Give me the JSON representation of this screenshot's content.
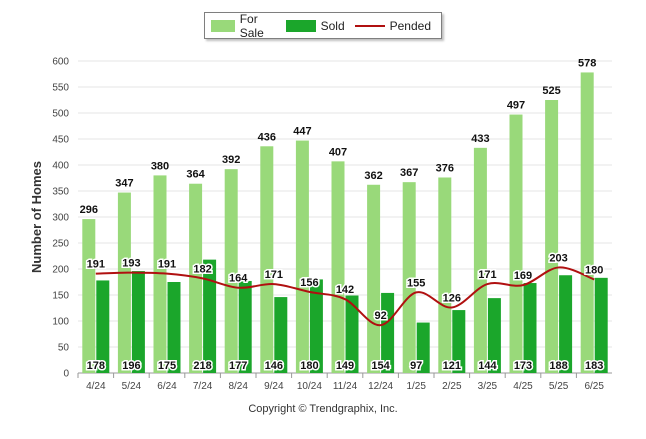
{
  "chart_data": {
    "type": "bar",
    "categories": [
      "4/24",
      "5/24",
      "6/24",
      "7/24",
      "8/24",
      "9/24",
      "10/24",
      "11/24",
      "12/24",
      "1/25",
      "2/25",
      "3/25",
      "4/25",
      "5/25",
      "6/25"
    ],
    "series": [
      {
        "name": "For Sale",
        "kind": "bar",
        "color": "#99d97a",
        "values": [
          296,
          347,
          380,
          364,
          392,
          436,
          447,
          407,
          362,
          367,
          376,
          433,
          497,
          525,
          578
        ]
      },
      {
        "name": "Sold",
        "kind": "bar",
        "color": "#1ba62b",
        "values": [
          178,
          196,
          175,
          218,
          177,
          146,
          180,
          149,
          154,
          97,
          121,
          144,
          173,
          188,
          183
        ]
      },
      {
        "name": "Pended",
        "kind": "line",
        "color": "#b01010",
        "values": [
          191,
          193,
          191,
          182,
          164,
          171,
          156,
          142,
          92,
          155,
          126,
          171,
          169,
          203,
          180
        ]
      }
    ],
    "ylabel": "Number of Homes",
    "xlabel": "",
    "ylim": [
      0,
      600
    ],
    "yticks": [
      0,
      50,
      100,
      150,
      200,
      250,
      300,
      350,
      400,
      450,
      500,
      550,
      600
    ],
    "grid": true,
    "legend_position": "top-center"
  },
  "copyright": "Copyright © Trendgraphix, Inc."
}
